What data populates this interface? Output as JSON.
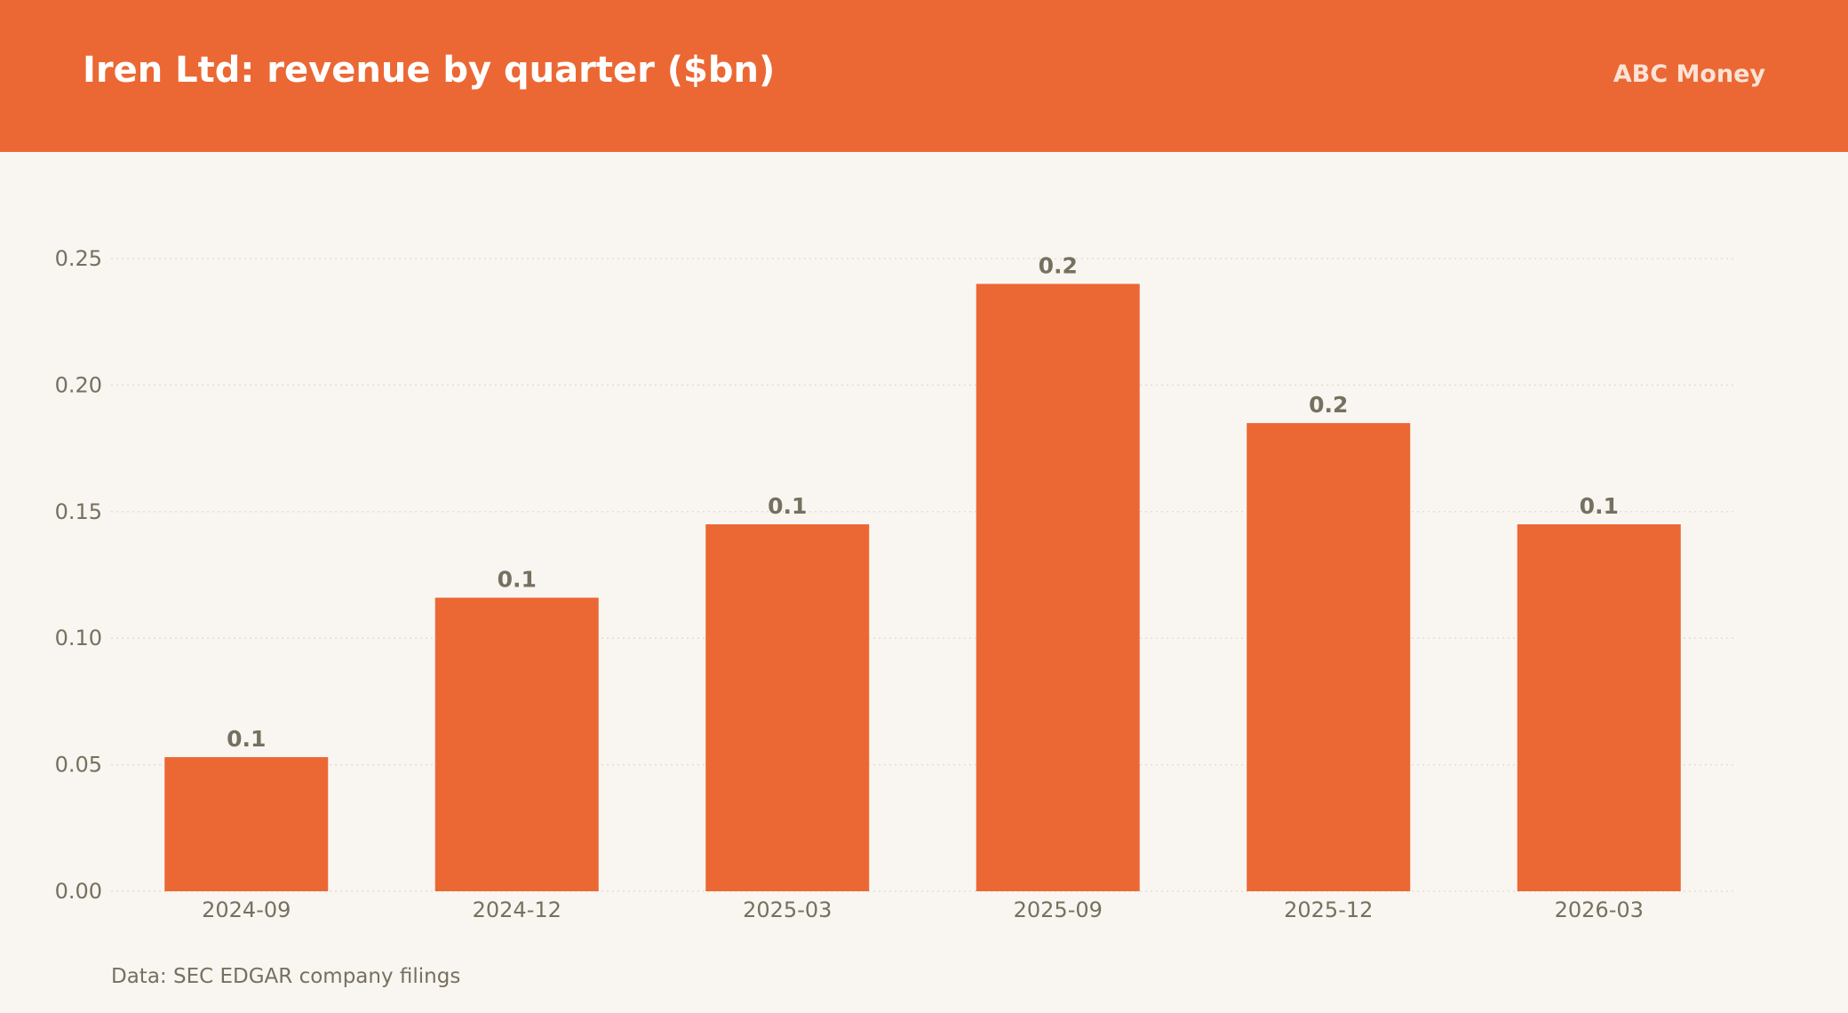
{
  "header": {
    "title": "Iren Ltd: revenue by quarter ($bn)",
    "brand": "ABC Money"
  },
  "footer": {
    "source": "Data: SEC EDGAR company filings"
  },
  "colors": {
    "header_bg": "#eb6834",
    "bar": "#eb6834",
    "page_bg": "#f9f6f1",
    "text_muted": "#76705f",
    "grid": "#e4ddd2"
  },
  "chart_data": {
    "type": "bar",
    "categories": [
      "2024-09",
      "2024-12",
      "2025-03",
      "2025-09",
      "2025-12",
      "2026-03"
    ],
    "values": [
      0.053,
      0.116,
      0.145,
      0.24,
      0.185,
      0.145
    ],
    "data_labels": [
      "0.1",
      "0.1",
      "0.1",
      "0.2",
      "0.2",
      "0.1"
    ],
    "title": "Iren Ltd: revenue by quarter ($bn)",
    "xlabel": "",
    "ylabel": "",
    "ylim": [
      0,
      0.25
    ],
    "yticks": [
      0.0,
      0.05,
      0.1,
      0.15,
      0.2,
      0.25
    ],
    "ytick_labels": [
      "0.00",
      "0.05",
      "0.10",
      "0.15",
      "0.20",
      "0.25"
    ],
    "grid": true,
    "legend": "none"
  }
}
